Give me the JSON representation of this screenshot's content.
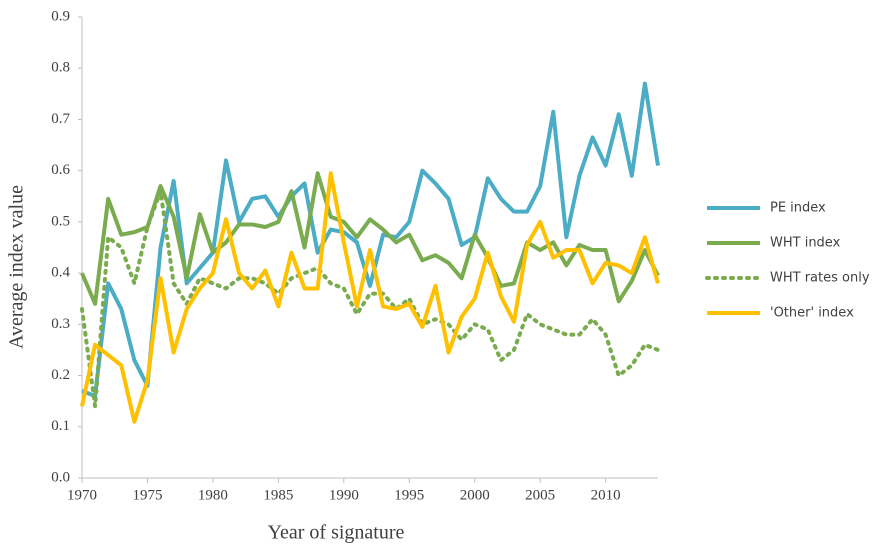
{
  "chart_data": {
    "type": "line",
    "x_label": "Year of signature",
    "y_label": "Average index value",
    "x": [
      1970,
      1971,
      1972,
      1973,
      1974,
      1975,
      1976,
      1977,
      1978,
      1979,
      1980,
      1981,
      1982,
      1983,
      1984,
      1985,
      1986,
      1987,
      1988,
      1989,
      1990,
      1991,
      1992,
      1993,
      1994,
      1995,
      1996,
      1997,
      1998,
      1999,
      2000,
      2001,
      2002,
      2003,
      2004,
      2005,
      2006,
      2007,
      2008,
      2009,
      2010,
      2011,
      2012,
      2013,
      2014
    ],
    "series": [
      {
        "name": "PE index",
        "color": "#4bacc6",
        "style": "solid",
        "values": [
          0.17,
          0.16,
          0.38,
          0.33,
          0.23,
          0.18,
          0.45,
          0.58,
          0.38,
          0.41,
          0.44,
          0.62,
          0.5,
          0.545,
          0.55,
          0.51,
          0.55,
          0.575,
          0.44,
          0.485,
          0.48,
          0.46,
          0.375,
          0.475,
          0.47,
          0.5,
          0.6,
          0.575,
          0.545,
          0.455,
          0.47,
          0.585,
          0.545,
          0.52,
          0.52,
          0.57,
          0.715,
          0.47,
          0.59,
          0.665,
          0.61,
          0.71,
          0.59,
          0.77,
          0.61
        ]
      },
      {
        "name": "WHT index",
        "color": "#7aab4e",
        "style": "solid",
        "values": [
          0.4,
          0.34,
          0.545,
          0.475,
          0.48,
          0.49,
          0.57,
          0.51,
          0.39,
          0.515,
          0.44,
          0.46,
          0.495,
          0.495,
          0.49,
          0.5,
          0.56,
          0.45,
          0.595,
          0.51,
          0.5,
          0.47,
          0.505,
          0.485,
          0.46,
          0.475,
          0.425,
          0.435,
          0.42,
          0.39,
          0.475,
          0.43,
          0.375,
          0.38,
          0.46,
          0.445,
          0.46,
          0.415,
          0.455,
          0.445,
          0.445,
          0.345,
          0.385,
          0.445,
          0.395
        ]
      },
      {
        "name": "WHT rates only",
        "color": "#7aab4e",
        "style": "dotted",
        "values": [
          0.33,
          0.14,
          0.47,
          0.45,
          0.38,
          0.49,
          0.56,
          0.38,
          0.34,
          0.39,
          0.38,
          0.37,
          0.39,
          0.39,
          0.38,
          0.36,
          0.39,
          0.4,
          0.41,
          0.38,
          0.37,
          0.32,
          0.36,
          0.36,
          0.33,
          0.35,
          0.3,
          0.31,
          0.3,
          0.27,
          0.3,
          0.29,
          0.23,
          0.25,
          0.32,
          0.3,
          0.29,
          0.28,
          0.28,
          0.31,
          0.28,
          0.2,
          0.22,
          0.26,
          0.25
        ]
      },
      {
        "name": "'Other' index",
        "color": "#ffc000",
        "style": "solid",
        "values": [
          0.14,
          0.26,
          0.24,
          0.22,
          0.11,
          0.19,
          0.39,
          0.245,
          0.33,
          0.37,
          0.4,
          0.505,
          0.4,
          0.37,
          0.405,
          0.335,
          0.44,
          0.37,
          0.37,
          0.595,
          0.46,
          0.335,
          0.445,
          0.335,
          0.33,
          0.34,
          0.295,
          0.375,
          0.245,
          0.315,
          0.35,
          0.44,
          0.355,
          0.305,
          0.455,
          0.5,
          0.43,
          0.445,
          0.445,
          0.38,
          0.42,
          0.415,
          0.4,
          0.47,
          0.38
        ]
      }
    ],
    "xlim": [
      1970,
      2014
    ],
    "xticks": [
      1970,
      1975,
      1980,
      1985,
      1990,
      1995,
      2000,
      2005,
      2010
    ],
    "ylim": [
      0,
      0.9
    ],
    "yticks": [
      {
        "value": 0,
        "label": "0.0"
      },
      0.1,
      0.2,
      0.3,
      0.4,
      0.5,
      0.6,
      0.7,
      0.8,
      0.9
    ],
    "legend": "right"
  }
}
